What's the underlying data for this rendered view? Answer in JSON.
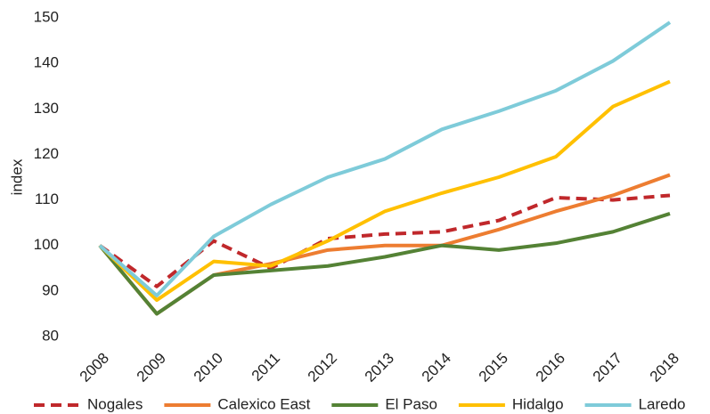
{
  "chart_data": {
    "type": "line",
    "y_label": "index",
    "categories": [
      "2008",
      "2009",
      "2010",
      "2011",
      "2012",
      "2013",
      "2014",
      "2015",
      "2016",
      "2017",
      "2018"
    ],
    "series": [
      {
        "name": "Nogales",
        "color": "#c0282b",
        "dashed": true,
        "values": [
          100,
          91,
          101,
          95,
          101.5,
          102.5,
          103,
          105.5,
          110.5,
          110,
          111
        ]
      },
      {
        "name": "Calexico East",
        "color": "#ed7d31",
        "values": [
          100,
          85,
          93.5,
          96,
          99,
          100,
          100,
          103.5,
          107.5,
          111,
          115.5
        ]
      },
      {
        "name": "El Paso",
        "color": "#548235",
        "values": [
          100,
          85,
          93.5,
          94.5,
          95.5,
          97.5,
          100,
          99,
          100.5,
          103,
          107
        ]
      },
      {
        "name": "Hidalgo",
        "color": "#ffc000",
        "values": [
          100,
          88,
          96.5,
          95.5,
          101,
          107.5,
          111.5,
          115,
          119.5,
          130.5,
          136
        ]
      },
      {
        "name": "Laredo",
        "color": "#7ecbd9",
        "values": [
          100,
          89,
          102,
          109,
          115,
          119,
          125.5,
          129.5,
          134,
          140.5,
          149
        ]
      }
    ],
    "ylim": [
      80,
      150
    ],
    "yticks": [
      80,
      90,
      100,
      110,
      120,
      130,
      140,
      150
    ],
    "grid": false,
    "legend": "bottom"
  }
}
